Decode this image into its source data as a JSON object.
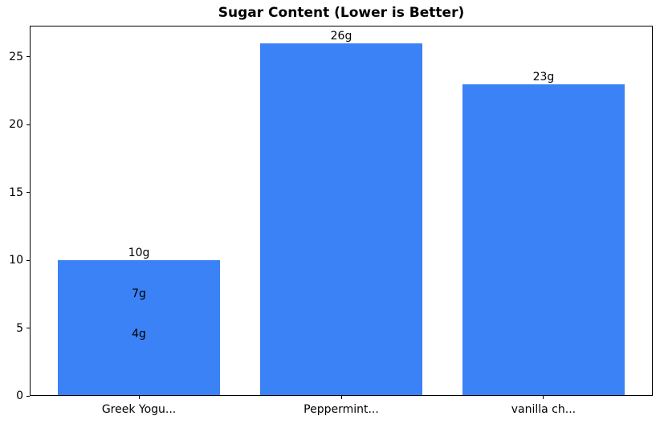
{
  "chart_data": {
    "type": "bar",
    "title": "Sugar Content (Lower is Better)",
    "categories": [
      "Greek Yogu...",
      "Peppermint...",
      "vanilla ch..."
    ],
    "bars": [
      {
        "category_index": 0,
        "value": 10,
        "label": "10g"
      },
      {
        "category_index": 0,
        "value": 7,
        "label": "7g"
      },
      {
        "category_index": 0,
        "value": 4,
        "label": "4g"
      },
      {
        "category_index": 1,
        "value": 26,
        "label": "26g"
      },
      {
        "category_index": 2,
        "value": 23,
        "label": "23g"
      }
    ],
    "overlap_note": "category 0 holds three overlapping same-color bars (10, 7, 4); the 7g and 4g value labels render inside the tallest bar",
    "xlabel": "",
    "ylabel": "",
    "yticks": [
      0,
      5,
      10,
      15,
      20,
      25
    ],
    "ylim": [
      0,
      27.3
    ],
    "xlim": [
      -0.54,
      2.54
    ],
    "bar_width_units": 0.8,
    "grid": false,
    "legend": null,
    "colors": {
      "bar": "#3b82f6",
      "axis": "#000000",
      "text": "#000000",
      "background": "#ffffff"
    }
  }
}
